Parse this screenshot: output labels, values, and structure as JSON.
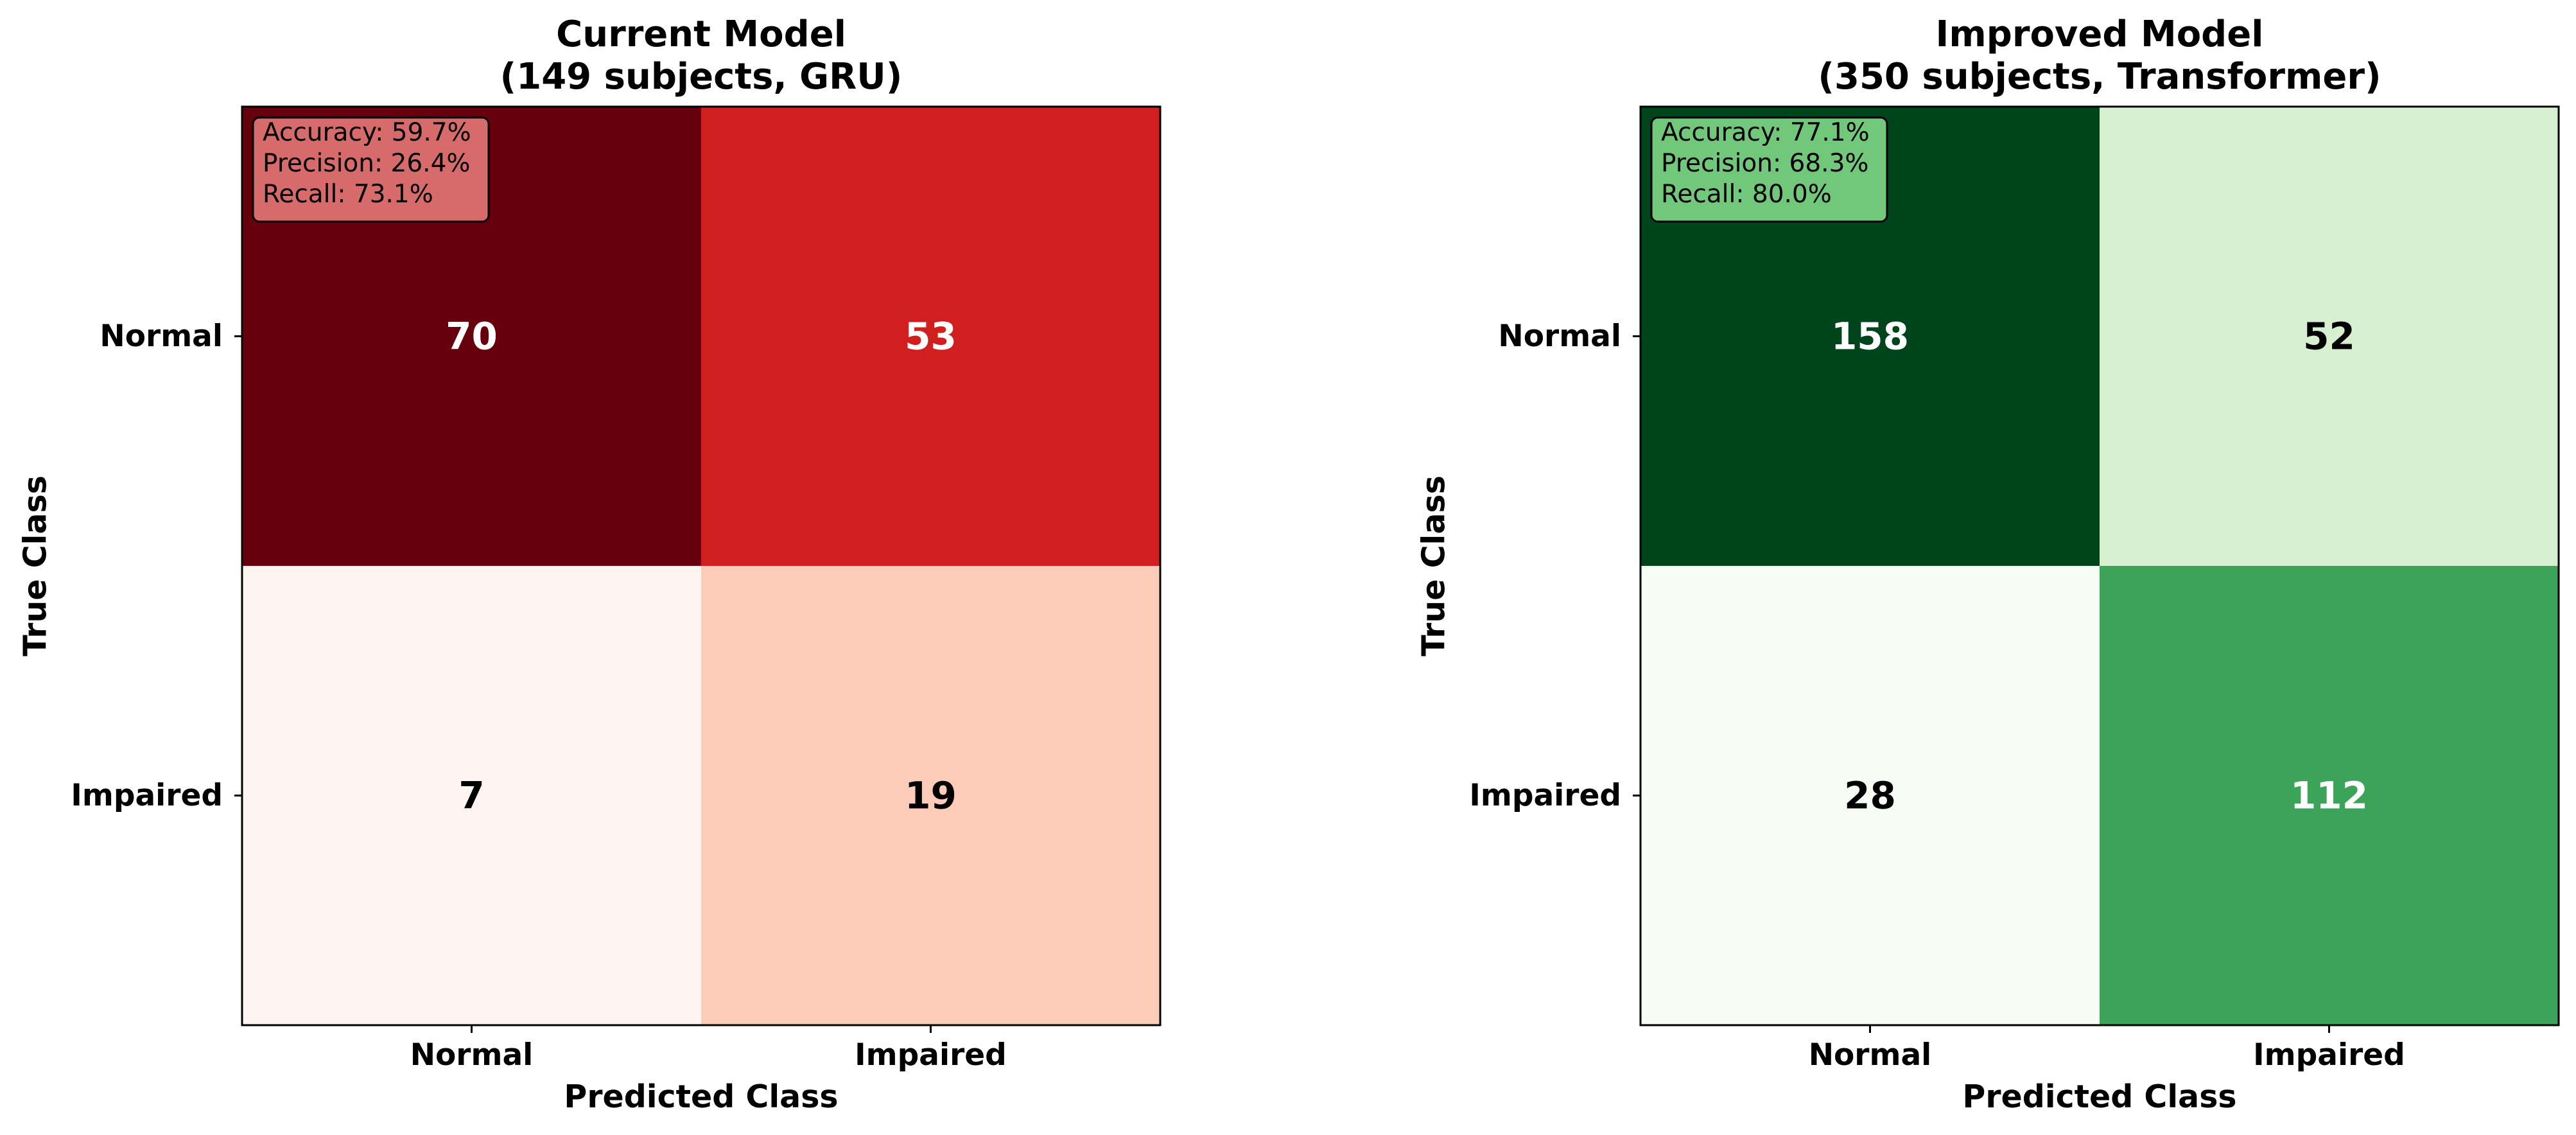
{
  "chart_data": [
    {
      "type": "heatmap",
      "title_line1": "Current Model",
      "title_line2": "(149 subjects, GRU)",
      "xlabel": "Predicted Class",
      "ylabel": "True Class",
      "x_categories": [
        "Normal",
        "Impaired"
      ],
      "y_categories": [
        "Normal",
        "Impaired"
      ],
      "matrix": [
        [
          70,
          53
        ],
        [
          7,
          19
        ]
      ],
      "colormap": "Reds",
      "cell_colors": [
        [
          "#67000d",
          "#d11f20"
        ],
        [
          "#fff5f0",
          "#fcccb8"
        ]
      ],
      "cell_text_colors": [
        [
          "#ffffff",
          "#ffffff"
        ],
        [
          "#000000",
          "#000000"
        ]
      ],
      "metrics": [
        "Accuracy: 59.7%",
        "Precision: 26.4%",
        "Recall: 73.1%"
      ],
      "metrics_box_color": "#d76a6a",
      "grid": false
    },
    {
      "type": "heatmap",
      "title_line1": "Improved Model",
      "title_line2": "(350 subjects, Transformer)",
      "xlabel": "Predicted Class",
      "ylabel": "True Class",
      "x_categories": [
        "Normal",
        "Impaired"
      ],
      "y_categories": [
        "Normal",
        "Impaired"
      ],
      "matrix": [
        [
          158,
          52
        ],
        [
          28,
          112
        ]
      ],
      "colormap": "Greens",
      "cell_colors": [
        [
          "#00441b",
          "#d5efcf"
        ],
        [
          "#f7fcf5",
          "#3ba458"
        ]
      ],
      "cell_text_colors": [
        [
          "#ffffff",
          "#000000"
        ],
        [
          "#000000",
          "#ffffff"
        ]
      ],
      "metrics": [
        "Accuracy: 77.1%",
        "Precision: 68.3%",
        "Recall: 80.0%"
      ],
      "metrics_box_color": "#72c87a",
      "grid": false
    }
  ]
}
